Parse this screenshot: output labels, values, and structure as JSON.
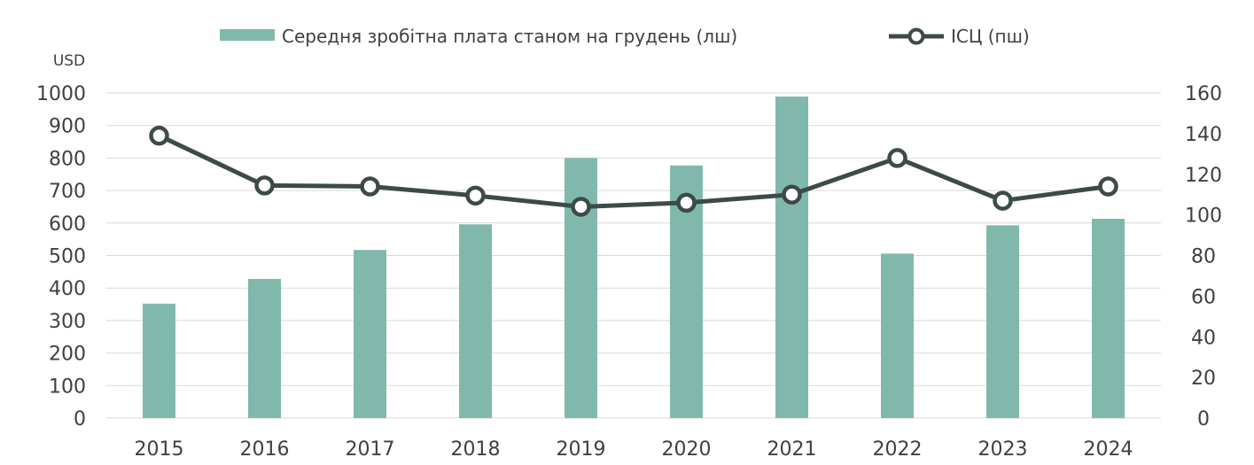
{
  "colors": {
    "bar": "#80b9ab",
    "line": "#3c4a48",
    "marker_fill": "#ffffff",
    "grid": "#d9d9d9",
    "text": "#404040"
  },
  "chart_data": {
    "type": "bar",
    "categories": [
      "2015",
      "2016",
      "2017",
      "2018",
      "2019",
      "2020",
      "2021",
      "2022",
      "2023",
      "2024"
    ],
    "series": [
      {
        "name": "Середня зробітна плата станом на грудень (лш)",
        "type": "bar",
        "axis": "left",
        "values": [
          352,
          428,
          517,
          596,
          800,
          777,
          989,
          506,
          593,
          613
        ]
      },
      {
        "name": "ІСЦ (пш)",
        "type": "line",
        "axis": "right",
        "values": [
          139,
          114.5,
          114,
          109.5,
          104,
          106,
          110,
          128,
          107,
          114
        ]
      }
    ],
    "left_axis": {
      "unit_label": "USD",
      "min": 0,
      "max": 1000,
      "ticks": [
        0,
        100,
        200,
        300,
        400,
        500,
        600,
        700,
        800,
        900,
        1000
      ]
    },
    "right_axis": {
      "min": 0,
      "max": 160,
      "ticks": [
        0,
        20,
        40,
        60,
        80,
        100,
        120,
        140,
        160
      ]
    },
    "grid": true,
    "legend_position": "top"
  }
}
